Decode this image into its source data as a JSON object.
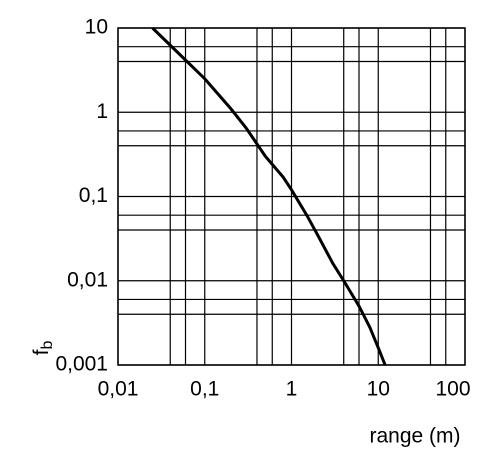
{
  "chart_data": {
    "type": "line",
    "x_label": "range (m)",
    "y_label": {
      "main": "f",
      "sub": "b"
    },
    "x_scale": "log",
    "y_scale": "log",
    "grid": true,
    "xlim": [
      0.01,
      100
    ],
    "ylim": [
      0.001,
      10
    ],
    "xticks": [
      {
        "value": 0.01,
        "label": "0,01"
      },
      {
        "value": 0.1,
        "label": "0,1"
      },
      1,
      10,
      100
    ],
    "yticks": [
      {
        "value": 0.001,
        "label": "0,001"
      },
      {
        "value": 0.01,
        "label": "0,01"
      },
      {
        "value": 0.1,
        "label": "0,1"
      },
      1,
      10
    ],
    "x_minor_grid": [
      0.04,
      0.06,
      0.4,
      0.6,
      4,
      6,
      40,
      60
    ],
    "y_minor_grid": [
      0.004,
      0.006,
      0.04,
      0.06,
      0.4,
      0.6,
      4,
      6
    ],
    "series": [
      {
        "color": "#000000",
        "x": [
          0.025,
          0.05,
          0.1,
          0.2,
          0.3,
          0.5,
          0.8,
          1,
          1.5,
          2,
          3,
          4,
          6,
          8,
          10,
          12
        ],
        "values": [
          10,
          5,
          2.5,
          1.1,
          0.65,
          0.3,
          0.17,
          0.12,
          0.06,
          0.035,
          0.016,
          0.01,
          0.005,
          0.0028,
          0.0016,
          0.001
        ]
      }
    ]
  }
}
